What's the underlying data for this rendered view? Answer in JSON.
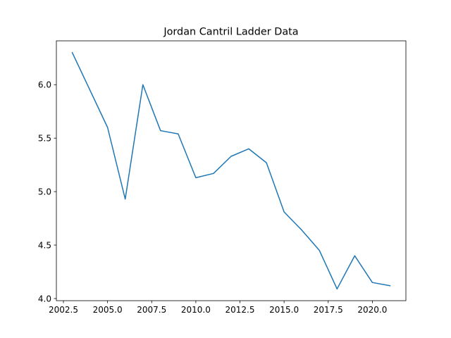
{
  "chart_data": {
    "type": "line",
    "title": "Jordan Cantril Ladder Data",
    "xlabel": "",
    "ylabel": "",
    "xlim": [
      2002.1,
      2021.9
    ],
    "ylim": [
      3.98,
      6.41
    ],
    "grid": false,
    "x_ticks": [
      2002.5,
      2005.0,
      2007.5,
      2010.0,
      2012.5,
      2015.0,
      2017.5,
      2020.0
    ],
    "x_tick_labels": [
      "2002.5",
      "2005.0",
      "2007.5",
      "2010.0",
      "2012.5",
      "2015.0",
      "2017.5",
      "2020.0"
    ],
    "y_ticks": [
      4.0,
      4.5,
      5.0,
      5.5,
      6.0
    ],
    "y_tick_labels": [
      "4.0",
      "4.5",
      "5.0",
      "5.5",
      "6.0"
    ],
    "series": [
      {
        "color": "#1f77b4",
        "x": [
          2003,
          2004,
          2005,
          2006,
          2007,
          2008,
          2009,
          2010,
          2011,
          2012,
          2013,
          2014,
          2015,
          2016,
          2017,
          2018,
          2019,
          2020,
          2021
        ],
        "values": [
          6.3,
          5.95,
          5.6,
          4.93,
          6.0,
          5.57,
          5.54,
          5.13,
          5.17,
          5.33,
          5.4,
          5.27,
          4.81,
          4.64,
          4.45,
          4.09,
          4.4,
          4.15,
          4.12
        ]
      }
    ]
  }
}
